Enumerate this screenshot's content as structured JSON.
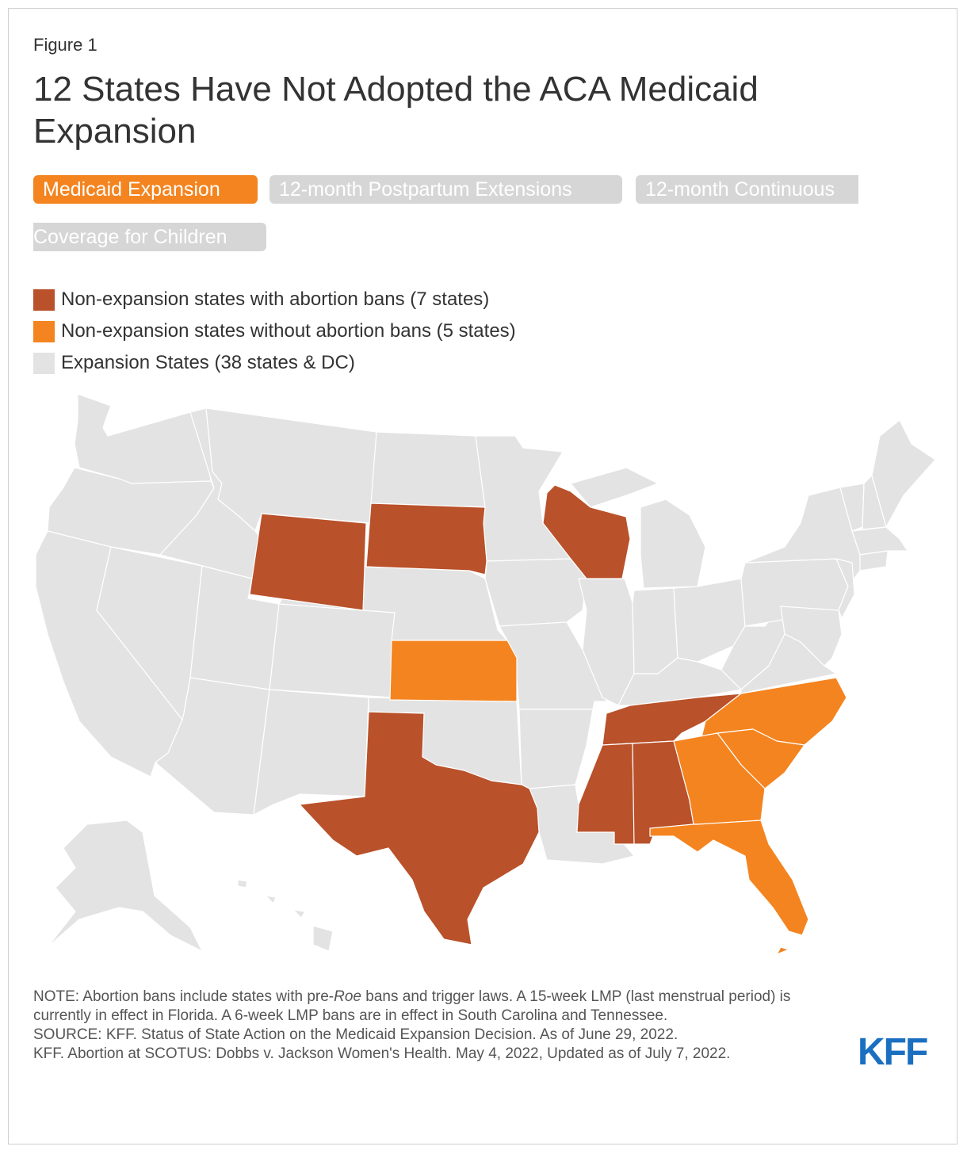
{
  "figure_label": "Figure 1",
  "title": "12 States Have Not Adopted the ACA Medicaid Expansion",
  "tabs": [
    {
      "label": "Medicaid Expansion",
      "active": true
    },
    {
      "label": "12-month Postpartum Extensions",
      "active": false
    },
    {
      "label": "12-month Continuous",
      "active": false
    },
    {
      "label": "Coverage for Children",
      "active": false
    }
  ],
  "legend": [
    {
      "label": "Non-expansion states with abortion bans (7 states)",
      "color": "#b9512a"
    },
    {
      "label": "Non-expansion states without abortion bans (5 states)",
      "color": "#f4841f"
    },
    {
      "label": "Expansion States (38 states & DC)",
      "color": "#e3e3e3"
    }
  ],
  "map_data": {
    "type": "choropleth",
    "region": "United States",
    "categories": {
      "ban": [
        "Wyoming",
        "South Dakota",
        "Wisconsin",
        "Texas",
        "Tennessee",
        "Mississippi",
        "Alabama"
      ],
      "no_ban": [
        "Kansas",
        "North Carolina",
        "South Carolina",
        "Georgia",
        "Florida"
      ],
      "expansion": "all other states & DC"
    }
  },
  "note": {
    "note_prefix": "NOTE: Abortion bans include states with pre-",
    "note_italic": "Roe",
    "note_suffix": " bans and trigger laws. A 15-week LMP (last menstrual period) is currently in effect in Florida. A 6-week LMP bans are in effect in South Carolina and Tennessee.",
    "source_1": "SOURCE: KFF. Status of State Action on the Medicaid Expansion Decision. As of June 29, 2022.",
    "source_2": "KFF. Abortion at SCOTUS: Dobbs v. Jackson Women's Health. May 4, 2022, Updated as of July 7, 2022."
  },
  "logo_text": "KFF",
  "colors": {
    "ban": "#b9512a",
    "no_ban": "#f4841f",
    "expansion": "#e3e3e3",
    "active_tab": "#f4841f",
    "inactive_tab": "#d6d6d6",
    "logo": "#1a6fc1"
  }
}
